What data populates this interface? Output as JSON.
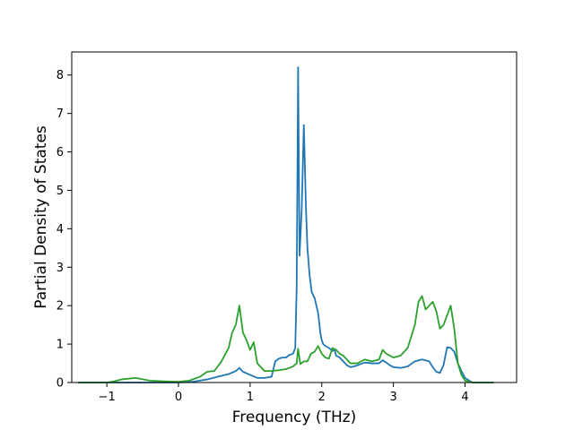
{
  "chart_data": {
    "type": "line",
    "title": "",
    "xlabel": "Frequency (THz)",
    "ylabel": "Partial Density of States",
    "xlim": [
      -1.49,
      4.72
    ],
    "ylim": [
      0,
      8.6
    ],
    "xticks": [
      -1,
      0,
      1,
      2,
      3,
      4
    ],
    "xtick_labels": [
      "−1",
      "0",
      "1",
      "2",
      "3",
      "4"
    ],
    "yticks": [
      0,
      1,
      2,
      3,
      4,
      5,
      6,
      7,
      8
    ],
    "ytick_labels": [
      "0",
      "1",
      "2",
      "3",
      "4",
      "5",
      "6",
      "7",
      "8"
    ],
    "grid": false,
    "legend": "none",
    "series": [
      {
        "color": "#1f77b4",
        "x": [
          -1.4,
          -1.0,
          -0.8,
          -0.6,
          -0.3,
          0.0,
          0.2,
          0.4,
          0.55,
          0.7,
          0.8,
          0.85,
          0.9,
          1.0,
          1.1,
          1.2,
          1.3,
          1.35,
          1.4,
          1.45,
          1.5,
          1.55,
          1.6,
          1.63,
          1.65,
          1.67,
          1.69,
          1.72,
          1.75,
          1.78,
          1.8,
          1.83,
          1.86,
          1.9,
          1.95,
          1.98,
          2.0,
          2.02,
          2.05,
          2.1,
          2.15,
          2.18,
          2.2,
          2.25,
          2.3,
          2.35,
          2.4,
          2.45,
          2.5,
          2.6,
          2.7,
          2.8,
          2.85,
          2.9,
          2.95,
          3.0,
          3.1,
          3.2,
          3.3,
          3.4,
          3.5,
          3.55,
          3.6,
          3.65,
          3.7,
          3.75,
          3.8,
          3.85,
          3.9,
          3.95,
          4.0,
          4.1,
          4.4
        ],
        "y": [
          0.0,
          0.0,
          0.0,
          0.0,
          0.0,
          0.0,
          0.02,
          0.08,
          0.15,
          0.22,
          0.3,
          0.38,
          0.28,
          0.2,
          0.12,
          0.12,
          0.15,
          0.55,
          0.62,
          0.65,
          0.65,
          0.72,
          0.75,
          0.9,
          2.5,
          8.2,
          3.3,
          4.5,
          6.7,
          4.5,
          3.5,
          2.8,
          2.35,
          2.2,
          1.8,
          1.3,
          1.1,
          1.0,
          0.95,
          0.9,
          0.82,
          0.85,
          0.7,
          0.65,
          0.55,
          0.45,
          0.4,
          0.42,
          0.45,
          0.52,
          0.5,
          0.5,
          0.58,
          0.52,
          0.45,
          0.4,
          0.38,
          0.42,
          0.55,
          0.6,
          0.55,
          0.4,
          0.28,
          0.25,
          0.45,
          0.92,
          0.9,
          0.8,
          0.5,
          0.3,
          0.12,
          0.0,
          0.0
        ]
      },
      {
        "color": "#2ca02c",
        "x": [
          -1.4,
          -1.0,
          -0.9,
          -0.8,
          -0.6,
          -0.4,
          -0.2,
          0.0,
          0.15,
          0.3,
          0.4,
          0.5,
          0.6,
          0.7,
          0.75,
          0.8,
          0.85,
          0.9,
          0.95,
          1.0,
          1.05,
          1.1,
          1.15,
          1.2,
          1.3,
          1.4,
          1.5,
          1.55,
          1.6,
          1.65,
          1.67,
          1.7,
          1.75,
          1.8,
          1.85,
          1.9,
          1.95,
          2.0,
          2.05,
          2.1,
          2.15,
          2.2,
          2.25,
          2.3,
          2.35,
          2.4,
          2.5,
          2.6,
          2.7,
          2.8,
          2.85,
          2.9,
          3.0,
          3.1,
          3.2,
          3.3,
          3.35,
          3.4,
          3.45,
          3.5,
          3.55,
          3.6,
          3.65,
          3.7,
          3.75,
          3.8,
          3.85,
          3.9,
          3.95,
          4.0,
          4.1,
          4.4
        ],
        "y": [
          0.0,
          0.0,
          0.03,
          0.08,
          0.12,
          0.05,
          0.03,
          0.02,
          0.05,
          0.15,
          0.28,
          0.3,
          0.55,
          0.9,
          1.3,
          1.5,
          2.0,
          1.3,
          1.1,
          0.85,
          1.05,
          0.5,
          0.4,
          0.3,
          0.3,
          0.32,
          0.35,
          0.38,
          0.42,
          0.5,
          0.88,
          0.48,
          0.55,
          0.55,
          0.75,
          0.8,
          0.95,
          0.75,
          0.65,
          0.62,
          0.9,
          0.85,
          0.75,
          0.7,
          0.6,
          0.5,
          0.5,
          0.6,
          0.55,
          0.6,
          0.85,
          0.75,
          0.65,
          0.7,
          0.9,
          1.5,
          2.1,
          2.25,
          1.9,
          2.0,
          2.1,
          1.85,
          1.4,
          1.5,
          1.75,
          2.0,
          1.4,
          0.5,
          0.2,
          0.05,
          0.0,
          0.0
        ]
      }
    ]
  }
}
